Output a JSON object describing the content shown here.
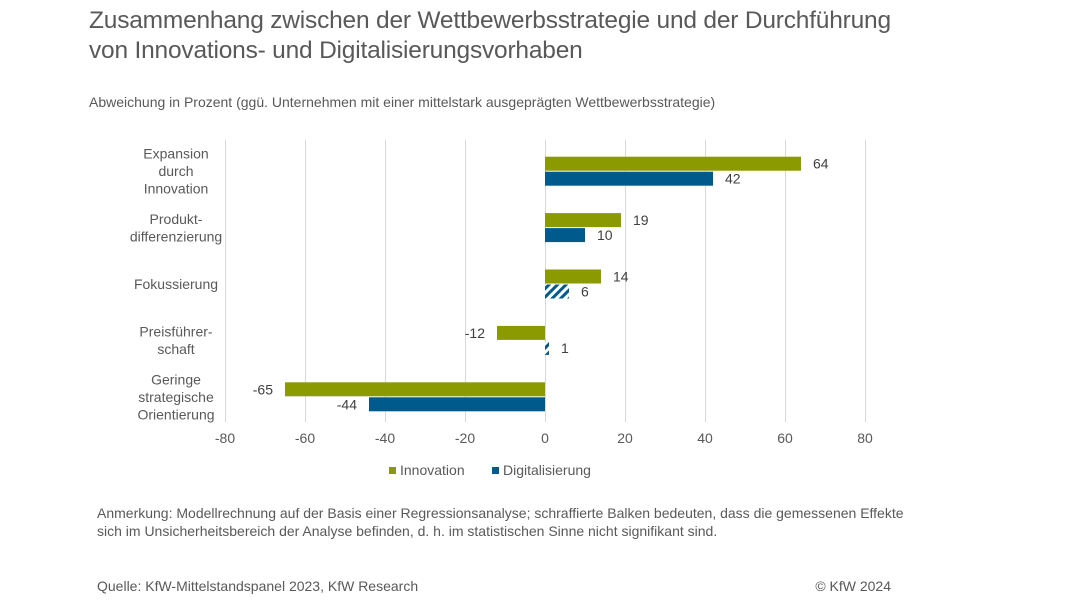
{
  "header": {
    "title_line1": "Zusammenhang zwischen der Wettbewerbsstrategie und der Durchführung",
    "title_line2": "von Innovations- und Digitalisierungsvorhaben",
    "subtitle": "Abweichung in Prozent (ggü. Unternehmen mit einer mittelstark ausgeprägten Wettbewerbsstrategie)"
  },
  "chart_data": {
    "type": "bar",
    "orientation": "horizontal",
    "title": "Zusammenhang zwischen der Wettbewerbsstrategie und der Durchführung von Innovations- und Digitalisierungsvorhaben",
    "subtitle": "Abweichung in Prozent (ggü. Unternehmen mit einer mittelstark ausgeprägten Wettbewerbsstrategie)",
    "xlabel": "",
    "ylabel": "",
    "categories": [
      [
        "Expansion",
        "durch",
        "Innovation"
      ],
      [
        "Produkt-",
        "differenzierung"
      ],
      [
        "Fokussierung"
      ],
      [
        "Preisführer-",
        "schaft"
      ],
      [
        "Geringe",
        "strategische",
        "Orientierung"
      ]
    ],
    "series": [
      {
        "name": "Innovation",
        "color": "#8a9a00",
        "values": [
          64,
          19,
          14,
          -12,
          -65
        ],
        "hatched": [
          false,
          false,
          false,
          false,
          false
        ]
      },
      {
        "name": "Digitalisierung",
        "color": "#005a8c",
        "values": [
          42,
          10,
          6,
          1,
          -44
        ],
        "hatched": [
          false,
          false,
          true,
          true,
          false
        ]
      }
    ],
    "xlim": [
      -80,
      80
    ],
    "xticks": [
      -80,
      -60,
      -40,
      -20,
      0,
      20,
      40,
      60,
      80
    ],
    "xtick_labels": [
      "-80",
      "-60",
      "-40",
      "-20",
      "0",
      "20",
      "40",
      "60",
      "80"
    ],
    "grid": "vertical",
    "legend_position": "bottom-center"
  },
  "legend": {
    "items": [
      {
        "label": "Innovation",
        "color": "#8a9a00"
      },
      {
        "label": "Digitalisierung",
        "color": "#005a8c"
      }
    ]
  },
  "footer": {
    "note": "Anmerkung: Modellrechnung auf der Basis einer Regressionsanalyse; schraffierte Balken bedeuten, dass die gemessenen Effekte sich im Unsicherheitsbereich der Analyse befinden, d. h. im statistischen Sinne nicht signifikant sind.",
    "source": "Quelle: KfW-Mittelstandspanel 2023, KfW Research",
    "copyright": "© KfW 2024"
  }
}
